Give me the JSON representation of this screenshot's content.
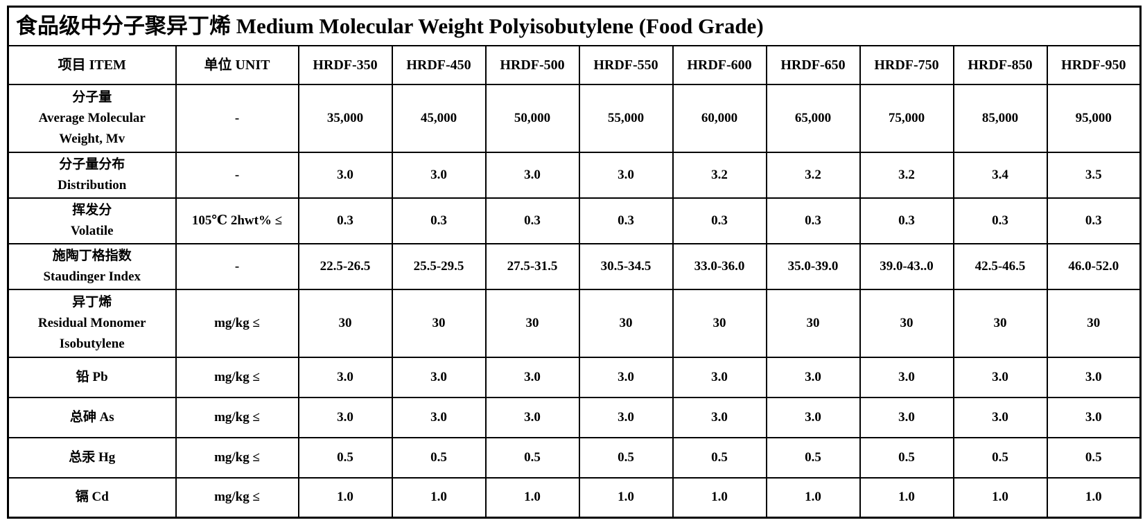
{
  "colors": {
    "text": "#000000",
    "background": "#ffffff",
    "border": "#000000"
  },
  "title": "食品级中分子聚异丁烯 Medium Molecular Weight Polyisobutylene (Food Grade)",
  "table": {
    "header": {
      "item": "项目 ITEM",
      "unit": "单位 UNIT",
      "grades": [
        "HRDF-350",
        "HRDF-450",
        "HRDF-500",
        "HRDF-550",
        "HRDF-600",
        "HRDF-650",
        "HRDF-750",
        "HRDF-850",
        "HRDF-950"
      ]
    },
    "rows": [
      {
        "item_lines": [
          "分子量",
          "Average Molecular",
          "Weight, Mv"
        ],
        "unit": "-",
        "values": [
          "35,000",
          "45,000",
          "50,000",
          "55,000",
          "60,000",
          "65,000",
          "75,000",
          "85,000",
          "95,000"
        ]
      },
      {
        "item_lines": [
          "分子量分布",
          "Distribution"
        ],
        "unit": "-",
        "values": [
          "3.0",
          "3.0",
          "3.0",
          "3.0",
          "3.2",
          "3.2",
          "3.2",
          "3.4",
          "3.5"
        ]
      },
      {
        "item_lines": [
          "挥发分",
          "Volatile"
        ],
        "unit": "105℃ 2hwt% ≤",
        "values": [
          "0.3",
          "0.3",
          "0.3",
          "0.3",
          "0.3",
          "0.3",
          "0.3",
          "0.3",
          "0.3"
        ]
      },
      {
        "item_lines": [
          "施陶丁格指数",
          "Staudinger Index"
        ],
        "unit": "-",
        "values": [
          "22.5-26.5",
          "25.5-29.5",
          "27.5-31.5",
          "30.5-34.5",
          "33.0-36.0",
          "35.0-39.0",
          "39.0-43..0",
          "42.5-46.5",
          "46.0-52.0"
        ]
      },
      {
        "item_lines": [
          "异丁烯",
          "Residual Monomer",
          "Isobutylene"
        ],
        "unit": "mg/kg ≤",
        "values": [
          "30",
          "30",
          "30",
          "30",
          "30",
          "30",
          "30",
          "30",
          "30"
        ]
      },
      {
        "item_lines": [
          "铅 Pb"
        ],
        "unit": "mg/kg ≤",
        "values": [
          "3.0",
          "3.0",
          "3.0",
          "3.0",
          "3.0",
          "3.0",
          "3.0",
          "3.0",
          "3.0"
        ]
      },
      {
        "item_lines": [
          "总砷 As"
        ],
        "unit": "mg/kg ≤",
        "values": [
          "3.0",
          "3.0",
          "3.0",
          "3.0",
          "3.0",
          "3.0",
          "3.0",
          "3.0",
          "3.0"
        ]
      },
      {
        "item_lines": [
          "总汞 Hg"
        ],
        "unit": "mg/kg ≤",
        "values": [
          "0.5",
          "0.5",
          "0.5",
          "0.5",
          "0.5",
          "0.5",
          "0.5",
          "0.5",
          "0.5"
        ]
      },
      {
        "item_lines": [
          "镉 Cd"
        ],
        "unit": "mg/kg ≤",
        "values": [
          "1.0",
          "1.0",
          "1.0",
          "1.0",
          "1.0",
          "1.0",
          "1.0",
          "1.0",
          "1.0"
        ]
      }
    ]
  }
}
